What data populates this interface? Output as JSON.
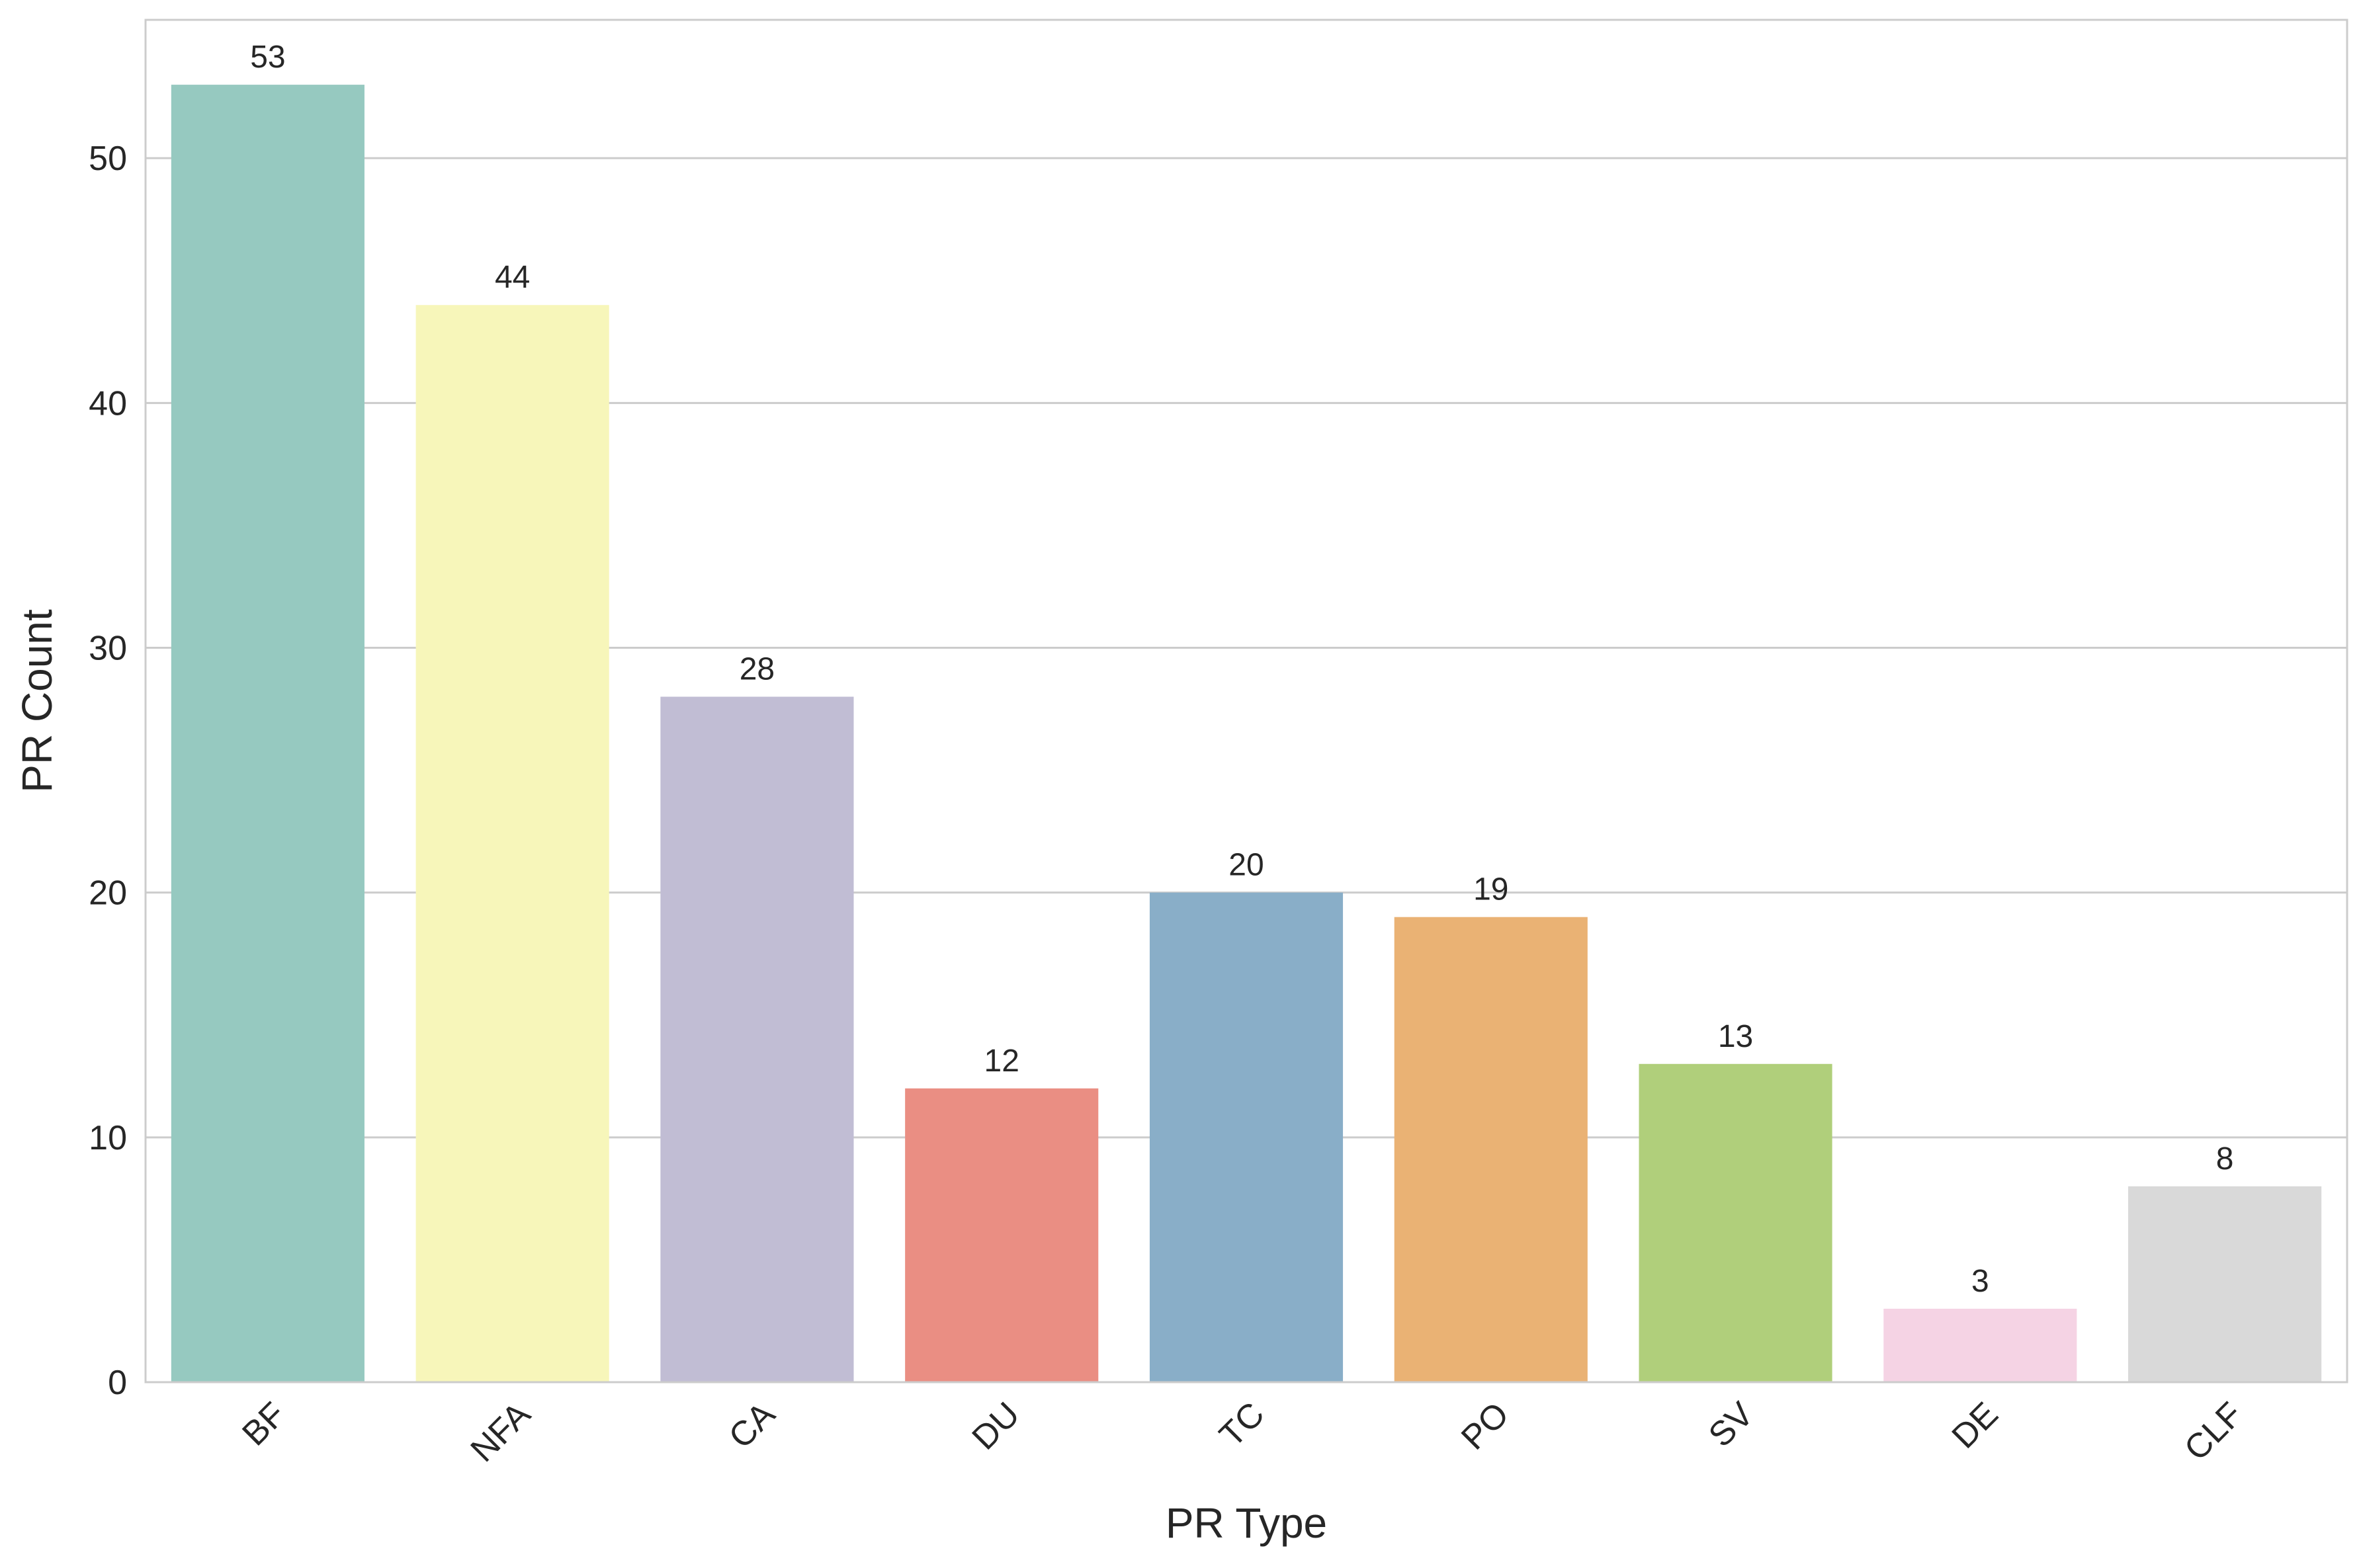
{
  "chart_data": {
    "type": "bar",
    "categories": [
      "BF",
      "NFA",
      "CA",
      "DU",
      "TC",
      "PO",
      "SV",
      "DE",
      "CLF"
    ],
    "values": [
      53,
      44,
      28,
      12,
      20,
      19,
      13,
      3,
      8
    ],
    "colors": [
      "#96c9c0",
      "#f7f6ba",
      "#c1bdd4",
      "#ea8e83",
      "#89aec8",
      "#eab274",
      "#b0cf7b",
      "#f5d3e4",
      "#d9d9d9"
    ],
    "title": "",
    "xlabel": "PR Type",
    "ylabel": "PR Count",
    "ylim": [
      0,
      55.65
    ],
    "yticks": [
      0,
      10,
      20,
      30,
      40,
      50
    ],
    "grid": "y-major",
    "legend": "none",
    "show_value_labels": true
  }
}
